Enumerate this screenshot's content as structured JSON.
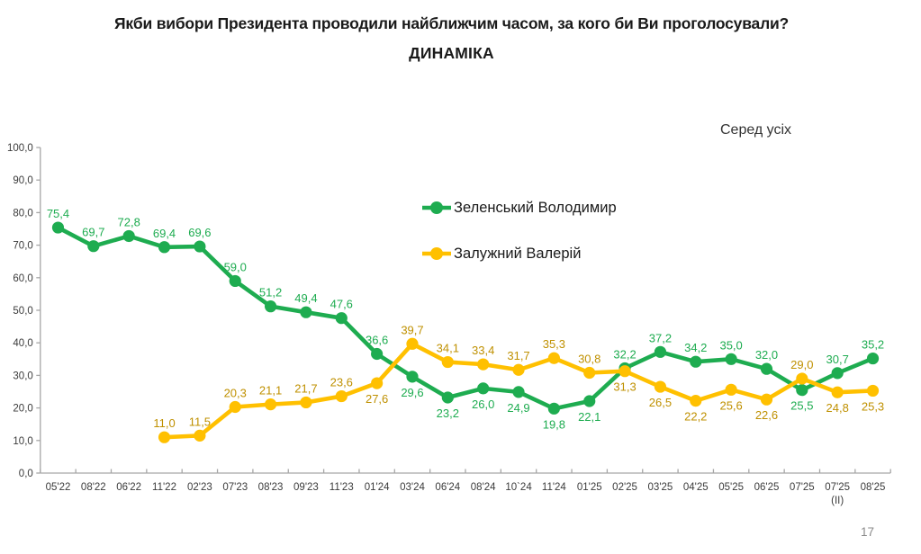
{
  "page": {
    "title_line1": "Якби вибори Президента проводили найближчим часом, за кого би Ви проголосували?",
    "title_line2": "ДИНАМІКА",
    "annotation": "Серед усіх",
    "page_number": "17"
  },
  "chart_data": {
    "type": "line",
    "title": "Якби вибори Президента проводили найближчим часом, за кого би Ви проголосували? ДИНАМІКА",
    "subtitle": "Серед усіх",
    "categories": [
      "05'22",
      "08'22",
      "06'22",
      "11'22",
      "02'23",
      "07'23",
      "08'23",
      "09'23",
      "11'23",
      "01'24",
      "03'24",
      "06'24",
      "08'24",
      "10`24",
      "11'24",
      "01'25",
      "02'25",
      "03'25",
      "04'25",
      "05'25",
      "06'25",
      "07'25",
      "07'25\n(II)",
      "08'25"
    ],
    "series": [
      {
        "name": "Зеленський Володимир",
        "color": "#1eac50",
        "label_color": "#1eac50",
        "values": [
          75.4,
          69.7,
          72.8,
          69.4,
          69.6,
          59.0,
          51.2,
          49.4,
          47.6,
          36.6,
          29.6,
          23.2,
          26.0,
          24.9,
          19.8,
          22.1,
          32.2,
          37.2,
          34.2,
          35.0,
          32.0,
          25.5,
          30.7,
          35.2
        ],
        "label_pos": [
          "above",
          "above",
          "above",
          "above",
          "above",
          "above",
          "above",
          "above",
          "above",
          "above",
          "below",
          "below",
          "below",
          "below",
          "below",
          "below",
          "above",
          "above",
          "above",
          "above",
          "above",
          "below",
          "above",
          "above"
        ]
      },
      {
        "name": "Залужний Валерій",
        "color": "#ffc000",
        "label_color": "#bf9000",
        "values": [
          null,
          null,
          null,
          11.0,
          11.5,
          20.3,
          21.1,
          21.7,
          23.6,
          27.6,
          39.7,
          34.1,
          33.4,
          31.7,
          35.3,
          30.8,
          31.3,
          26.5,
          22.2,
          25.6,
          22.6,
          29.0,
          24.8,
          25.3
        ],
        "label_pos": [
          null,
          null,
          null,
          "above",
          "above",
          "above",
          "above",
          "above",
          "above",
          "below",
          "above",
          "above",
          "above",
          "above",
          "above",
          "above",
          "below",
          "below",
          "below",
          "below",
          "below",
          "above",
          "below",
          "below"
        ]
      }
    ],
    "ylim": [
      0,
      100
    ],
    "ytick_step": 10,
    "grid": false,
    "legend_position": "inside-top-center",
    "decimal_separator": ",",
    "axis_color": "#a6a6a6",
    "tick_label_color": "#3b3b3b"
  }
}
